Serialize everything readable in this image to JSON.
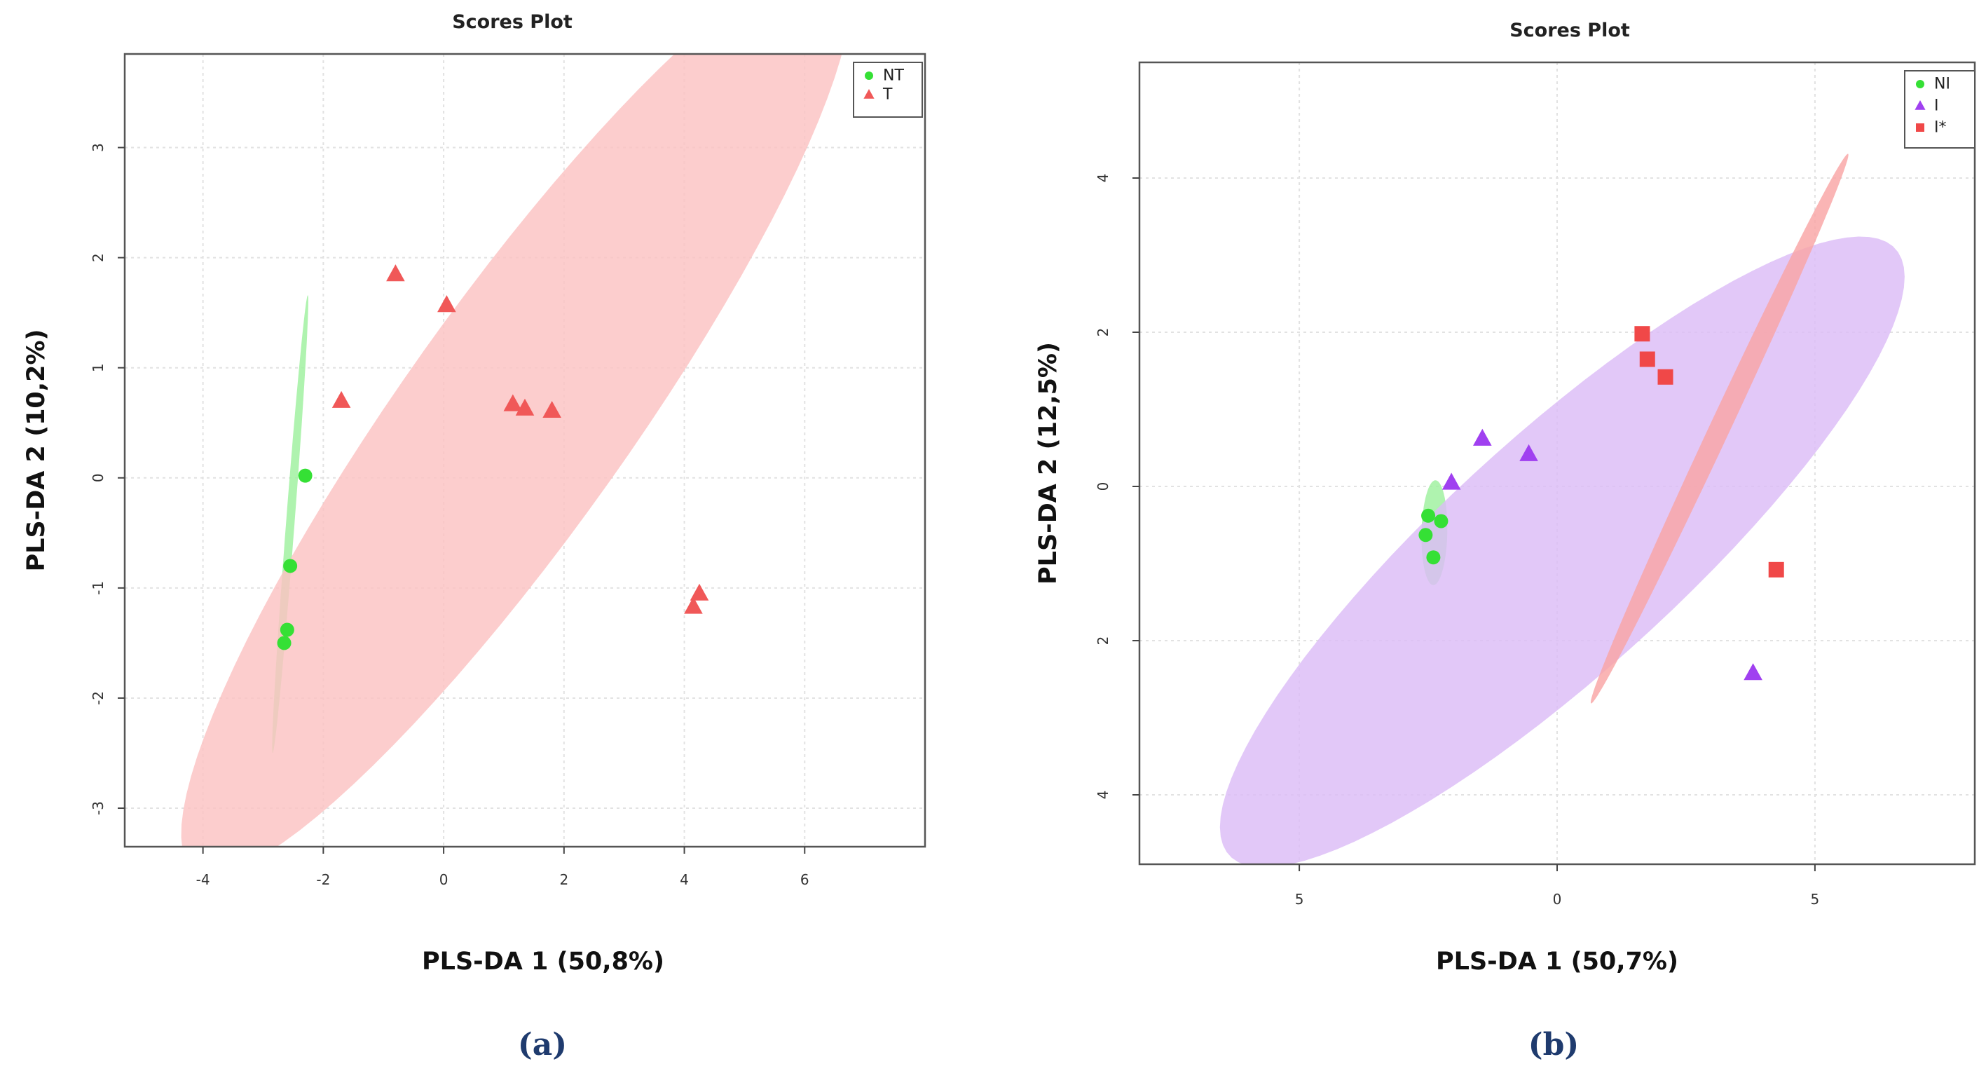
{
  "chart_data": [
    {
      "type": "scatter",
      "title": "Scores Plot",
      "xlabel": "PLS-DA 1 (50,8%)",
      "ylabel": "PLS-DA 2 (10,2%)",
      "caption": "(a)",
      "xlim": [
        -5.3,
        8
      ],
      "ylim": [
        -3.35,
        3.85
      ],
      "xticks": [
        -4,
        -2,
        0,
        2,
        4,
        6
      ],
      "xtick_labels": [
        "-4",
        "-2",
        "0",
        "2",
        "4",
        "6"
      ],
      "yticks": [
        -3,
        -2,
        -1,
        0,
        1,
        2,
        3
      ],
      "ytick_labels": [
        "-3",
        "-2",
        "-1",
        "0",
        "1",
        "2",
        "3"
      ],
      "grid": true,
      "legend_position": "top-right",
      "series": [
        {
          "name": "NT",
          "marker": "circle",
          "color": "#35e035",
          "fill": "#9df09d",
          "points": [
            [
              -2.3,
              0.02
            ],
            [
              -2.55,
              -0.8
            ],
            [
              -2.6,
              -1.38
            ],
            [
              -2.65,
              -1.5
            ]
          ],
          "ellipse": {
            "cx": -2.55,
            "cy": -0.42,
            "rx": 2.1,
            "ry": 0.07,
            "angle_deg": 82
          }
        },
        {
          "name": "T",
          "marker": "triangle",
          "color": "#f05858",
          "fill": "#fbc2c2",
          "points": [
            [
              -0.8,
              1.85
            ],
            [
              0.05,
              1.57
            ],
            [
              -1.7,
              0.7
            ],
            [
              1.15,
              0.67
            ],
            [
              1.35,
              0.63
            ],
            [
              1.8,
              0.61
            ],
            [
              4.25,
              -1.05
            ],
            [
              4.15,
              -1.17
            ]
          ],
          "ellipse": {
            "cx": 1.2,
            "cy": 0.55,
            "rx": 6.8,
            "ry": 1.4,
            "angle_deg": 36
          }
        }
      ]
    },
    {
      "type": "scatter",
      "title": "Scores Plot",
      "xlabel": "PLS-DA 1 (50,7%)",
      "ylabel": "PLS-DA 2 (12,5%)",
      "caption": "(b)",
      "xlim": [
        -8.1,
        8.1
      ],
      "ylim": [
        -4.9,
        5.5
      ],
      "xticks": [
        -5,
        0,
        5
      ],
      "xtick_labels": [
        "5",
        "0",
        "5"
      ],
      "yticks": [
        -4,
        -2,
        0,
        2,
        4
      ],
      "ytick_labels": [
        "4",
        "2",
        "0",
        "2",
        "4"
      ],
      "grid": true,
      "legend_position": "top-right",
      "series": [
        {
          "name": "NI",
          "marker": "circle",
          "color": "#35e035",
          "fill": "#9df09d",
          "points": [
            [
              -2.5,
              -0.38
            ],
            [
              -2.25,
              -0.45
            ],
            [
              -2.55,
              -0.63
            ],
            [
              -2.4,
              -0.92
            ]
          ],
          "ellipse": {
            "cx": -2.38,
            "cy": -0.6,
            "rx": 0.68,
            "ry": 0.25,
            "angle_deg": 88
          }
        },
        {
          "name": "I",
          "marker": "triangle",
          "color": "#a040f0",
          "fill": "#dcbcf7",
          "points": [
            [
              -1.45,
              0.62
            ],
            [
              -0.55,
              0.42
            ],
            [
              -2.05,
              0.05
            ],
            [
              3.8,
              -2.42
            ]
          ],
          "ellipse": {
            "cx": 0.1,
            "cy": -0.85,
            "rx": 7.6,
            "ry": 1.75,
            "angle_deg": 30
          }
        },
        {
          "name": "I*",
          "marker": "square",
          "color": "#f04848",
          "fill": "#f9a5a5",
          "points": [
            [
              1.65,
              1.98
            ],
            [
              1.75,
              1.65
            ],
            [
              2.1,
              1.42
            ],
            [
              4.25,
              -1.08
            ]
          ],
          "ellipse": {
            "cx": 3.15,
            "cy": 0.75,
            "rx": 4.35,
            "ry": 0.18,
            "angle_deg": 55
          }
        }
      ]
    }
  ]
}
